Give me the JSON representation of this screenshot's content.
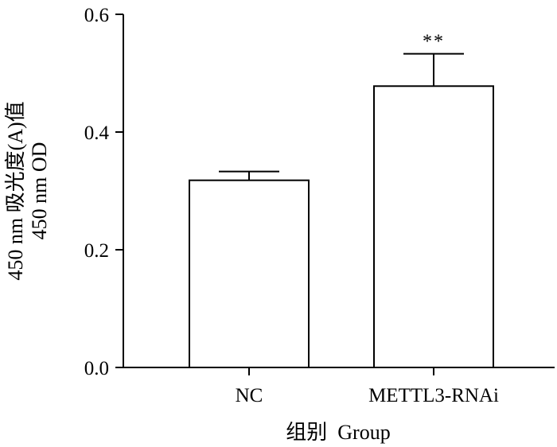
{
  "chart_data": {
    "type": "bar",
    "categories": [
      "NC",
      "METTL3-RNAi"
    ],
    "values": [
      0.318,
      0.478
    ],
    "errors": [
      0.015,
      0.055
    ],
    "significance": [
      "",
      "**"
    ],
    "ylim": [
      0,
      0.6
    ],
    "yticks": [
      0.0,
      0.2,
      0.4,
      0.6
    ],
    "ytick_labels": [
      "0.0",
      "0.2",
      "0.4",
      "0.6"
    ],
    "ylabel_lines": [
      "450 nm 吸光度(A)值",
      "450 nm OD"
    ],
    "xlabel": "组别  Group",
    "bar_fill": "#ffffff",
    "bar_stroke": "#000000"
  }
}
